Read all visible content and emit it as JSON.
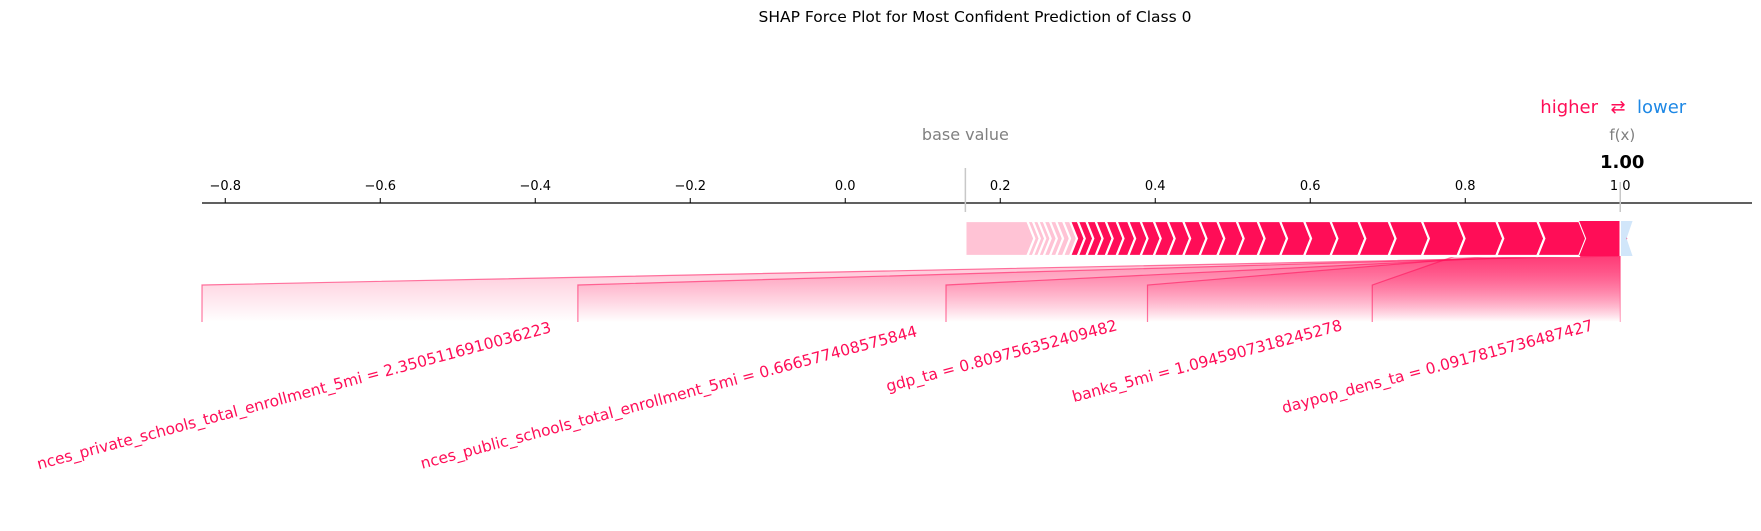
{
  "chart_data": {
    "type": "force",
    "title": "SHAP Force Plot for Most Confident Prediction of Class 0",
    "legend": {
      "higher": "higher",
      "arrows": "⇄",
      "lower": "lower",
      "position": "top-right"
    },
    "base_value_label": "base value",
    "output_label": "f(x)",
    "output_value_text": "1.00",
    "base_value": 0.155,
    "output_value": 1.0,
    "xlim": [
      -0.83,
      1.17
    ],
    "ticks": [
      -0.8,
      -0.6,
      -0.4,
      -0.2,
      0.0,
      0.2,
      0.4,
      0.6,
      0.8,
      1.0
    ],
    "tick_labels": [
      "−0.8",
      "−0.6",
      "−0.4",
      "−0.2",
      "0.0",
      "0.2",
      "0.4",
      "0.6",
      "0.8",
      "1 0"
    ],
    "segment_boundaries": [
      0.155,
      0.235,
      0.242,
      0.249,
      0.256,
      0.264,
      0.272,
      0.281,
      0.29,
      0.3,
      0.311,
      0.323,
      0.336,
      0.35,
      0.365,
      0.381,
      0.398,
      0.416,
      0.436,
      0.457,
      0.48,
      0.505,
      0.532,
      0.561,
      0.592,
      0.626,
      0.662,
      0.701,
      0.744,
      0.79,
      0.84,
      0.893,
      0.947,
      1.0
    ],
    "negative_segment": [
      1.0,
      1.012
    ],
    "labeled_features": [
      {
        "label": "nces_private_schools_total_enrollment_5mi = 2.3505116910036223",
        "end": -0.83
      },
      {
        "label": "nces_public_schools_total_enrollment_5mi = 0.666577408575844",
        "end": -0.345
      },
      {
        "label": "gdp_ta = 0.809756352409482",
        "end": 0.13
      },
      {
        "label": "banks_5mi = 1.0945907318245278",
        "end": 0.39
      },
      {
        "label": "daypop_dens_ta = 0.0917815736487427",
        "end": 0.68
      }
    ],
    "colors": {
      "positive": "#ff0d57",
      "negative": "#1e88e5",
      "positive_light": "#ffc3d5",
      "negative_light": "#d1e6fa",
      "axis": "#000000",
      "base_text": "#808080"
    }
  }
}
